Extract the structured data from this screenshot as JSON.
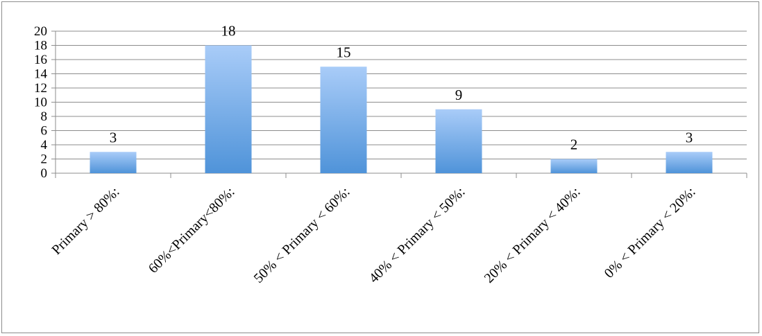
{
  "chart_data": {
    "type": "bar",
    "title": "",
    "xlabel": "",
    "ylabel": "",
    "categories": [
      "Primary > 80%:",
      "60%<Primary<80%:",
      "50% < Primary < 60%:",
      "40% < Primary < 50%:",
      "20% < Primary < 40%:",
      "0% < Primary < 20%:"
    ],
    "values": [
      3,
      18,
      15,
      9,
      2,
      3
    ],
    "ylim": [
      0,
      20
    ],
    "yticks": [
      "0",
      "2",
      "4",
      "6",
      "8",
      "10",
      "12",
      "14",
      "16",
      "18",
      "20"
    ],
    "data_labels": [
      "3",
      "18",
      "15",
      "9",
      "2",
      "3"
    ],
    "grid": true,
    "legend": "none",
    "colors": {
      "bar_top": "#a9ccf8",
      "bar_bottom": "#4f93d9",
      "grid": "#8c8c8c",
      "axis": "#8c8c8c"
    }
  }
}
